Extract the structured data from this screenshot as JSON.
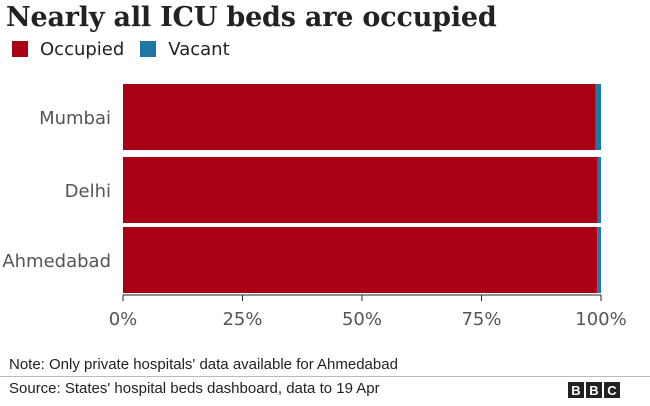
{
  "chart_data": {
    "type": "bar",
    "orientation": "horizontal",
    "stacked": true,
    "title": "Nearly all ICU beds are occupied",
    "categories": [
      "Mumbai",
      "Delhi",
      "Ahmedabad"
    ],
    "series": [
      {
        "name": "Occupied",
        "values": [
          98.9,
          99.3,
          99.2
        ],
        "color": "#a90015"
      },
      {
        "name": "Vacant",
        "values": [
          1.1,
          0.7,
          0.8
        ],
        "color": "#1f77a3"
      }
    ],
    "xlim": [
      0,
      100
    ],
    "xticks": [
      0,
      25,
      50,
      75,
      100
    ],
    "xtick_labels": [
      "0%",
      "25%",
      "50%",
      "75%",
      "100%"
    ],
    "xlabel": "",
    "ylabel": "",
    "grid": false,
    "legend_position": "top-left"
  },
  "legend": {
    "occupied_label": "Occupied",
    "vacant_label": "Vacant",
    "occupied_color": "#a90015",
    "vacant_color": "#1f77a3"
  },
  "footer": {
    "note": "Note: Only private hospitals' data available for Ahmedabad",
    "source": "Source: States' hospital beds dashboard, data to 19 Apr",
    "logo_letters": [
      "B",
      "B",
      "C"
    ]
  }
}
